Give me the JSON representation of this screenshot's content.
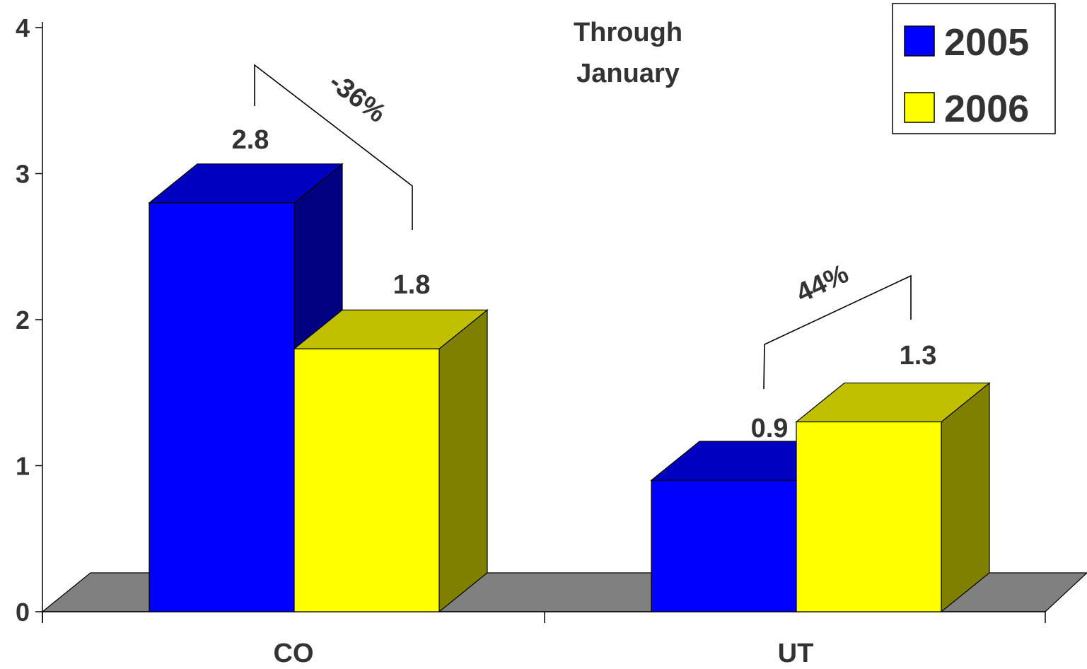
{
  "chart_data": {
    "type": "bar",
    "title": "Through January",
    "categories": [
      "CO",
      "UT"
    ],
    "series": [
      {
        "name": "2005",
        "values": [
          2.8,
          0.9
        ],
        "color": "#0000FF",
        "side_color": "#000080"
      },
      {
        "name": "2006",
        "values": [
          1.8,
          1.3
        ],
        "color": "#FFFF00",
        "side_color": "#808000"
      }
    ],
    "data_labels": [
      [
        "2.8",
        "0.9"
      ],
      [
        "1.8",
        "1.3"
      ]
    ],
    "annotations": [
      {
        "category": "CO",
        "text": "-36%"
      },
      {
        "category": "UT",
        "text": "44%"
      }
    ],
    "ylim": [
      0,
      4
    ],
    "yticks": [
      "0",
      "1",
      "2",
      "3",
      "4"
    ],
    "xlabel": "",
    "ylabel": "",
    "grid": false,
    "legend_position": "top-right",
    "floor_color": "#808080"
  }
}
